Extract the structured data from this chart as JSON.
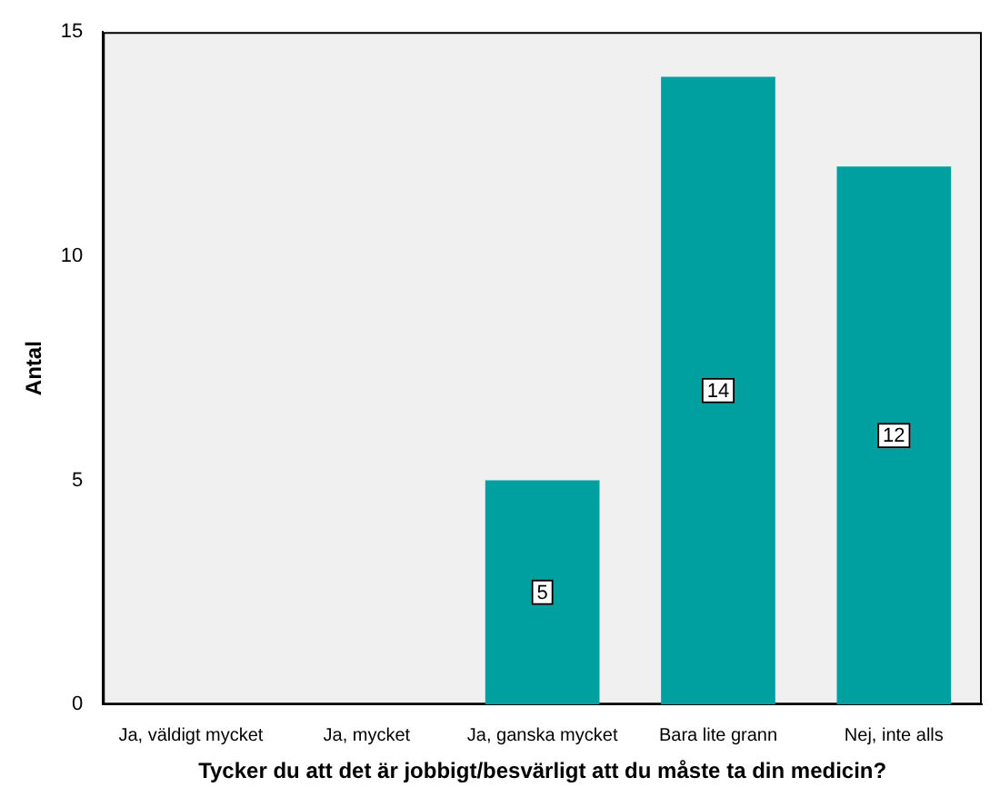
{
  "chart_data": {
    "type": "bar",
    "xlabel": "Tycker du att det är jobbigt/besvärligt att du måste ta din medicin?",
    "ylabel": "Antal",
    "categories": [
      "Ja, väldigt mycket",
      "Ja, mycket",
      "Ja, ganska mycket",
      "Bara lite grann",
      "Nej, inte alls"
    ],
    "values": [
      0,
      0,
      5,
      14,
      12
    ],
    "value_labels": [
      null,
      null,
      "5",
      "14",
      "12"
    ],
    "color": "#00a0a0",
    "ylim": [
      0,
      15
    ],
    "yticks": [
      0,
      5,
      10,
      15
    ],
    "grid": false,
    "legend": false
  }
}
